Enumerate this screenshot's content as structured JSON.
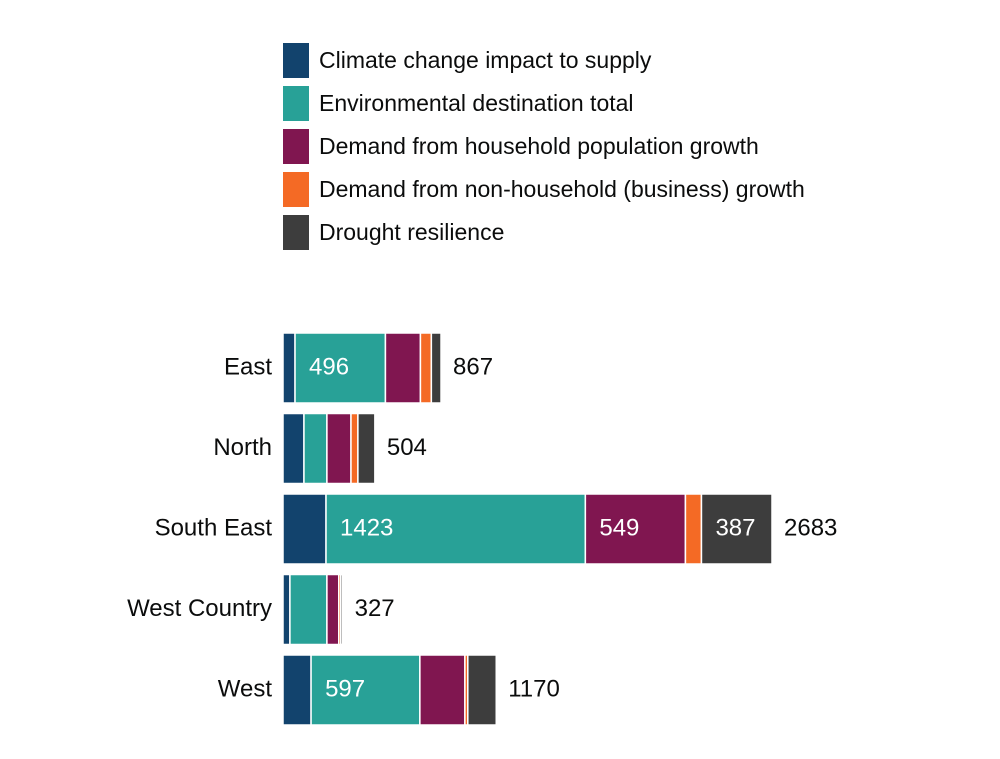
{
  "chart_data": {
    "type": "bar",
    "orientation": "horizontal",
    "stacked": true,
    "categories": [
      "East",
      "North",
      "South East",
      "West Country",
      "West"
    ],
    "series": [
      {
        "name": "Climate change impact to supply",
        "color": "#12436d",
        "values": [
          66,
          115,
          236,
          38,
          154
        ]
      },
      {
        "name": "Environmental destination total",
        "color": "#28a197",
        "values": [
          496,
          126,
          1423,
          203,
          597
        ]
      },
      {
        "name": "Demand from household population growth",
        "color": "#801650",
        "values": [
          192,
          132,
          549,
          65,
          247
        ]
      },
      {
        "name": "Demand from non-household (business) growth",
        "color": "#f46a25",
        "values": [
          60,
          38,
          88,
          11,
          16
        ]
      },
      {
        "name": "Drought resilience",
        "color": "#3d3d3d",
        "values": [
          53,
          93,
          387,
          10,
          156
        ]
      }
    ],
    "totals": [
      867,
      504,
      2683,
      327,
      1170
    ],
    "xlim": [
      0,
      2683
    ]
  }
}
